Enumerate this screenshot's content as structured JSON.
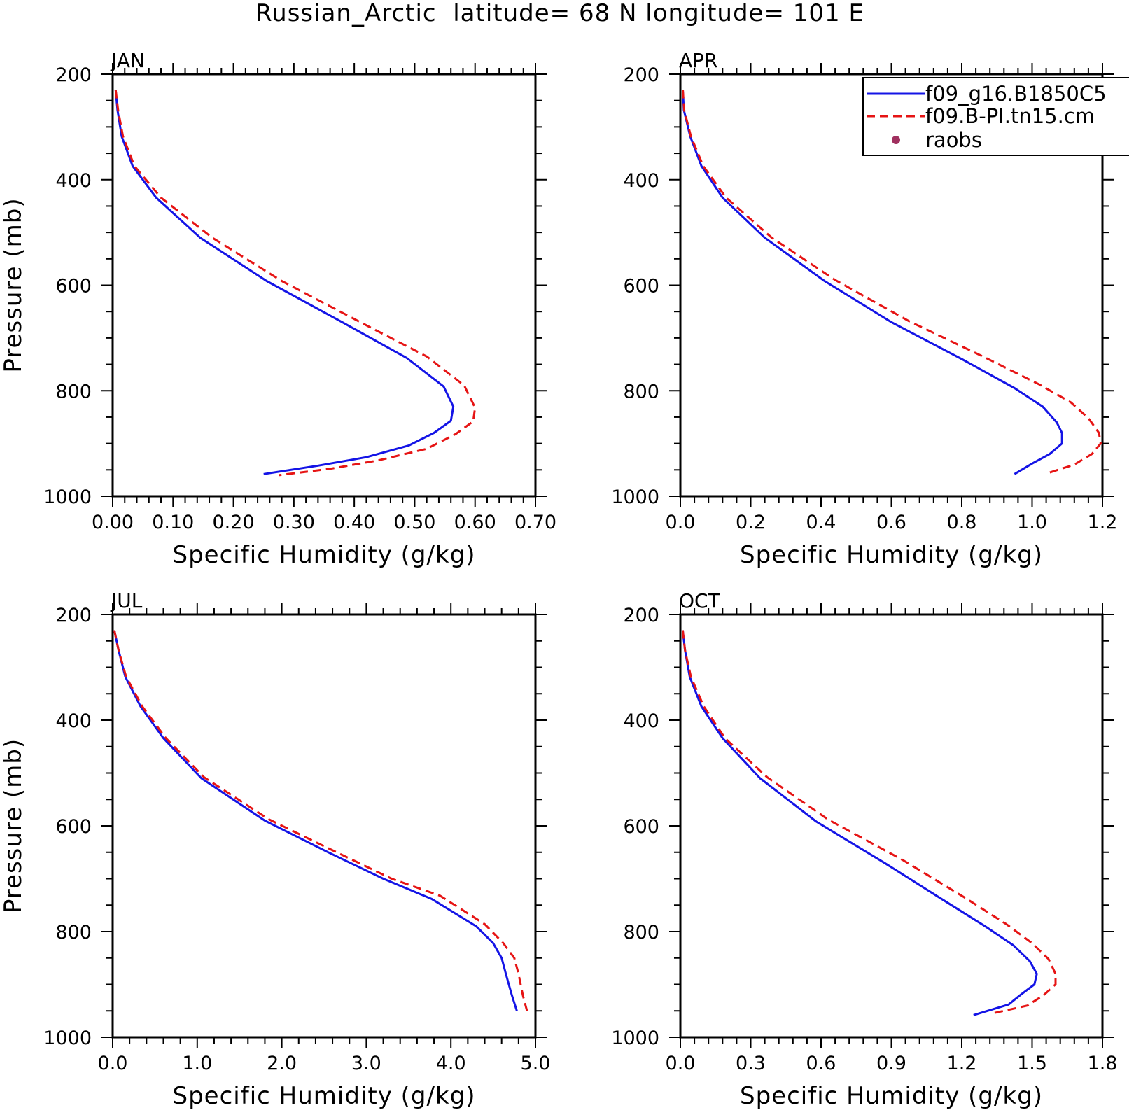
{
  "figure": {
    "title": "Russian_Arctic  latitude= 68 N longitude= 101 E"
  },
  "legend": {
    "entries": [
      {
        "label": "f09_g16.B1850C5",
        "color": "#1414e6",
        "style": "solid"
      },
      {
        "label": "f09.B-PI.tn15.cm",
        "color": "#e61414",
        "style": "dashed"
      },
      {
        "label": "raobs",
        "color": "#a0305f",
        "style": "marker"
      }
    ]
  },
  "chart_data": [
    {
      "type": "line",
      "panel": "JAN",
      "title": "JAN",
      "xlabel": "Specific Humidity (g/kg)",
      "ylabel": "Pressure (mb)",
      "xlim": [
        0,
        0.7
      ],
      "ylim": [
        1000,
        200
      ],
      "y_inverted": true,
      "x_ticks": [
        "0.00",
        "0.10",
        "0.20",
        "0.30",
        "0.40",
        "0.50",
        "0.60",
        "0.70"
      ],
      "y_ticks": [
        "200",
        "400",
        "600",
        "800",
        "1000"
      ],
      "series": [
        {
          "name": "f09_g16.B1850C5",
          "color": "#1414e6",
          "dash": false,
          "points": [
            [
              0.005,
              230
            ],
            [
              0.008,
              268
            ],
            [
              0.015,
              318
            ],
            [
              0.033,
              374
            ],
            [
              0.072,
              434
            ],
            [
              0.145,
              510
            ],
            [
              0.255,
              592
            ],
            [
              0.38,
              670
            ],
            [
              0.487,
              738
            ],
            [
              0.548,
              792
            ],
            [
              0.564,
              830
            ],
            [
              0.56,
              857
            ],
            [
              0.532,
              880
            ],
            [
              0.49,
              904
            ],
            [
              0.42,
              926
            ],
            [
              0.34,
              942
            ],
            [
              0.25,
              958
            ]
          ]
        },
        {
          "name": "f09.B-PI.tn15.cm",
          "color": "#e61414",
          "dash": true,
          "points": [
            [
              0.005,
              230
            ],
            [
              0.009,
              268
            ],
            [
              0.017,
              318
            ],
            [
              0.036,
              374
            ],
            [
              0.08,
              434
            ],
            [
              0.165,
              510
            ],
            [
              0.28,
              592
            ],
            [
              0.41,
              670
            ],
            [
              0.52,
              735
            ],
            [
              0.582,
              790
            ],
            [
              0.6,
              832
            ],
            [
              0.597,
              858
            ],
            [
              0.568,
              882
            ],
            [
              0.52,
              910
            ],
            [
              0.44,
              932
            ],
            [
              0.36,
              948
            ],
            [
              0.275,
              960
            ]
          ]
        }
      ]
    },
    {
      "type": "line",
      "panel": "APR",
      "title": "APR",
      "xlabel": "Specific Humidity (g/kg)",
      "ylabel": "",
      "xlim": [
        0,
        1.2
      ],
      "ylim": [
        1000,
        200
      ],
      "y_inverted": true,
      "x_ticks": [
        "0.0",
        "0.2",
        "0.4",
        "0.6",
        "0.8",
        "1.0",
        "1.2"
      ],
      "y_ticks": [
        "200",
        "400",
        "600",
        "800",
        "1000"
      ],
      "series": [
        {
          "name": "f09_g16.B1850C5",
          "color": "#1414e6",
          "dash": false,
          "points": [
            [
              0.007,
              230
            ],
            [
              0.01,
              268
            ],
            [
              0.028,
              318
            ],
            [
              0.06,
              374
            ],
            [
              0.12,
              434
            ],
            [
              0.24,
              510
            ],
            [
              0.41,
              592
            ],
            [
              0.6,
              670
            ],
            [
              0.8,
              740
            ],
            [
              0.95,
              795
            ],
            [
              1.03,
              830
            ],
            [
              1.07,
              860
            ],
            [
              1.085,
              880
            ],
            [
              1.085,
              900
            ],
            [
              1.05,
              920
            ],
            [
              1.0,
              938
            ],
            [
              0.95,
              958
            ]
          ]
        },
        {
          "name": "f09.B-PI.tn15.cm",
          "color": "#e61414",
          "dash": true,
          "points": [
            [
              0.007,
              230
            ],
            [
              0.011,
              268
            ],
            [
              0.03,
              318
            ],
            [
              0.065,
              374
            ],
            [
              0.13,
              434
            ],
            [
              0.26,
              510
            ],
            [
              0.44,
              590
            ],
            [
              0.65,
              668
            ],
            [
              0.86,
              735
            ],
            [
              1.02,
              788
            ],
            [
              1.11,
              822
            ],
            [
              1.16,
              852
            ],
            [
              1.19,
              880
            ],
            [
              1.195,
              900
            ],
            [
              1.17,
              920
            ],
            [
              1.12,
              940
            ],
            [
              1.05,
              955
            ]
          ]
        }
      ]
    },
    {
      "type": "line",
      "panel": "JUL",
      "title": "JUL",
      "xlabel": "Specific Humidity (g/kg)",
      "ylabel": "Pressure (mb)",
      "xlim": [
        0,
        5
      ],
      "ylim": [
        1000,
        200
      ],
      "y_inverted": true,
      "x_ticks": [
        "0.0",
        "1.0",
        "2.0",
        "3.0",
        "4.0",
        "5.0"
      ],
      "y_ticks": [
        "200",
        "400",
        "600",
        "800",
        "1000"
      ],
      "series": [
        {
          "name": "f09_g16.B1850C5",
          "color": "#1414e6",
          "dash": false,
          "points": [
            [
              0.02,
              230
            ],
            [
              0.07,
              268
            ],
            [
              0.15,
              318
            ],
            [
              0.33,
              374
            ],
            [
              0.6,
              434
            ],
            [
              1.05,
              510
            ],
            [
              1.8,
              590
            ],
            [
              2.55,
              650
            ],
            [
              3.2,
              700
            ],
            [
              3.77,
              738
            ],
            [
              4.3,
              790
            ],
            [
              4.5,
              822
            ],
            [
              4.6,
              850
            ],
            [
              4.65,
              880
            ],
            [
              4.72,
              920
            ],
            [
              4.78,
              950
            ]
          ]
        },
        {
          "name": "f09.B-PI.tn15.cm",
          "color": "#e61414",
          "dash": true,
          "points": [
            [
              0.02,
              230
            ],
            [
              0.07,
              268
            ],
            [
              0.16,
              318
            ],
            [
              0.35,
              374
            ],
            [
              0.63,
              434
            ],
            [
              1.08,
              508
            ],
            [
              1.85,
              588
            ],
            [
              2.65,
              650
            ],
            [
              3.3,
              700
            ],
            [
              3.87,
              732
            ],
            [
              4.4,
              786
            ],
            [
              4.62,
              822
            ],
            [
              4.75,
              850
            ],
            [
              4.8,
              880
            ],
            [
              4.85,
              920
            ],
            [
              4.9,
              950
            ]
          ]
        }
      ]
    },
    {
      "type": "line",
      "panel": "OCT",
      "title": "OCT",
      "xlabel": "Specific Humidity (g/kg)",
      "ylabel": "",
      "xlim": [
        0,
        1.8
      ],
      "ylim": [
        1000,
        200
      ],
      "y_inverted": true,
      "x_ticks": [
        "0.0",
        "0.3",
        "0.6",
        "0.9",
        "1.2",
        "1.5",
        "1.8"
      ],
      "y_ticks": [
        "200",
        "400",
        "600",
        "800",
        "1000"
      ],
      "series": [
        {
          "name": "f09_g16.B1850C5",
          "color": "#1414e6",
          "dash": false,
          "points": [
            [
              0.01,
              230
            ],
            [
              0.02,
              268
            ],
            [
              0.04,
              318
            ],
            [
              0.09,
              374
            ],
            [
              0.18,
              434
            ],
            [
              0.34,
              510
            ],
            [
              0.58,
              592
            ],
            [
              0.87,
              670
            ],
            [
              1.12,
              740
            ],
            [
              1.3,
              790
            ],
            [
              1.42,
              826
            ],
            [
              1.49,
              856
            ],
            [
              1.52,
              880
            ],
            [
              1.51,
              900
            ],
            [
              1.45,
              920
            ],
            [
              1.4,
              938
            ],
            [
              1.25,
              958
            ]
          ]
        },
        {
          "name": "f09.B-PI.tn15.cm",
          "color": "#e61414",
          "dash": true,
          "points": [
            [
              0.01,
              230
            ],
            [
              0.02,
              268
            ],
            [
              0.045,
              318
            ],
            [
              0.1,
              374
            ],
            [
              0.19,
              434
            ],
            [
              0.37,
              508
            ],
            [
              0.63,
              588
            ],
            [
              0.95,
              665
            ],
            [
              1.21,
              735
            ],
            [
              1.39,
              786
            ],
            [
              1.5,
              822
            ],
            [
              1.57,
              852
            ],
            [
              1.6,
              880
            ],
            [
              1.6,
              900
            ],
            [
              1.55,
              920
            ],
            [
              1.48,
              940
            ],
            [
              1.33,
              955
            ]
          ]
        }
      ]
    }
  ]
}
